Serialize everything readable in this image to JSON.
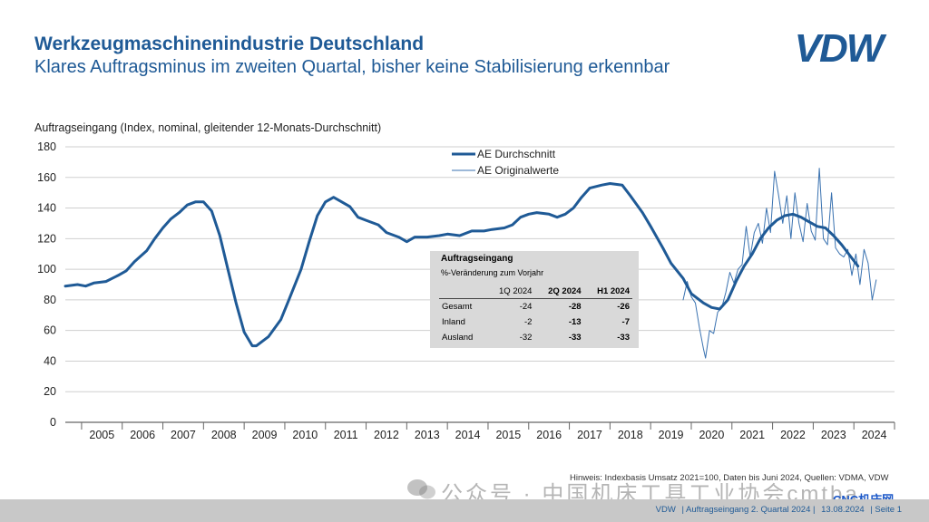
{
  "header": {
    "title": "Werkzeugmaschinenindustrie Deutschland",
    "subtitle": "Klares Auftragsminus im zweiten Quartal, bisher keine Stabilisierung erkennbar",
    "logo_text": "VDW"
  },
  "chart_data": {
    "type": "line",
    "ylabel": "Auftragseingang (Index, nominal, gleitender 12-Monats-Durchschnitt)",
    "ylim": [
      0,
      180
    ],
    "yticks": [
      0,
      20,
      40,
      60,
      80,
      100,
      120,
      140,
      160,
      180
    ],
    "xlim": [
      2004.6,
      2025.0
    ],
    "categories": [
      "2005",
      "2006",
      "2007",
      "2008",
      "2009",
      "2010",
      "2011",
      "2012",
      "2013",
      "2014",
      "2015",
      "2016",
      "2017",
      "2018",
      "2019",
      "2020",
      "2021",
      "2022",
      "2023",
      "2024"
    ],
    "grid": true,
    "legend_position": "top-center",
    "series": [
      {
        "name": "AE Durchschnitt",
        "color": "#1f5a96",
        "width": 3,
        "points": [
          [
            2004.6,
            89
          ],
          [
            2004.9,
            90
          ],
          [
            2005.1,
            89
          ],
          [
            2005.3,
            91
          ],
          [
            2005.6,
            92
          ],
          [
            2005.9,
            96
          ],
          [
            2006.1,
            99
          ],
          [
            2006.3,
            105
          ],
          [
            2006.6,
            112
          ],
          [
            2006.8,
            120
          ],
          [
            2007.0,
            127
          ],
          [
            2007.2,
            133
          ],
          [
            2007.4,
            137
          ],
          [
            2007.6,
            142
          ],
          [
            2007.8,
            144
          ],
          [
            2008.0,
            144
          ],
          [
            2008.2,
            138
          ],
          [
            2008.4,
            122
          ],
          [
            2008.6,
            100
          ],
          [
            2008.8,
            78
          ],
          [
            2009.0,
            59
          ],
          [
            2009.2,
            50
          ],
          [
            2009.3,
            50
          ],
          [
            2009.6,
            56
          ],
          [
            2009.9,
            67
          ],
          [
            2010.1,
            80
          ],
          [
            2010.4,
            100
          ],
          [
            2010.6,
            118
          ],
          [
            2010.8,
            135
          ],
          [
            2011.0,
            144
          ],
          [
            2011.2,
            147
          ],
          [
            2011.4,
            144
          ],
          [
            2011.6,
            141
          ],
          [
            2011.8,
            134
          ],
          [
            2012.0,
            132
          ],
          [
            2012.3,
            129
          ],
          [
            2012.5,
            124
          ],
          [
            2012.8,
            121
          ],
          [
            2013.0,
            118
          ],
          [
            2013.2,
            121
          ],
          [
            2013.5,
            121
          ],
          [
            2013.8,
            122
          ],
          [
            2014.0,
            123
          ],
          [
            2014.3,
            122
          ],
          [
            2014.6,
            125
          ],
          [
            2014.9,
            125
          ],
          [
            2015.1,
            126
          ],
          [
            2015.4,
            127
          ],
          [
            2015.6,
            129
          ],
          [
            2015.8,
            134
          ],
          [
            2016.0,
            136
          ],
          [
            2016.2,
            137
          ],
          [
            2016.5,
            136
          ],
          [
            2016.7,
            134
          ],
          [
            2016.9,
            136
          ],
          [
            2017.1,
            140
          ],
          [
            2017.3,
            147
          ],
          [
            2017.5,
            153
          ],
          [
            2017.8,
            155
          ],
          [
            2018.0,
            156
          ],
          [
            2018.3,
            155
          ],
          [
            2018.5,
            148
          ],
          [
            2018.8,
            137
          ],
          [
            2019.0,
            128
          ],
          [
            2019.3,
            114
          ],
          [
            2019.5,
            104
          ],
          [
            2019.8,
            94
          ],
          [
            2020.0,
            84
          ],
          [
            2020.3,
            78
          ],
          [
            2020.5,
            75
          ],
          [
            2020.7,
            74
          ],
          [
            2020.9,
            80
          ],
          [
            2021.1,
            92
          ],
          [
            2021.3,
            102
          ],
          [
            2021.5,
            110
          ],
          [
            2021.7,
            120
          ],
          [
            2021.9,
            127
          ],
          [
            2022.1,
            132
          ],
          [
            2022.3,
            135
          ],
          [
            2022.5,
            136
          ],
          [
            2022.7,
            134
          ],
          [
            2022.9,
            131
          ],
          [
            2023.1,
            128
          ],
          [
            2023.3,
            127
          ],
          [
            2023.5,
            122
          ],
          [
            2023.7,
            116
          ],
          [
            2023.9,
            109
          ],
          [
            2024.1,
            102
          ]
        ]
      },
      {
        "name": "AE Originalwerte",
        "color": "#3a72b0",
        "width": 1,
        "points": [
          [
            2019.8,
            80
          ],
          [
            2019.9,
            92
          ],
          [
            2020.0,
            82
          ],
          [
            2020.1,
            78
          ],
          [
            2020.2,
            62
          ],
          [
            2020.3,
            48
          ],
          [
            2020.35,
            42
          ],
          [
            2020.45,
            60
          ],
          [
            2020.55,
            58
          ],
          [
            2020.65,
            72
          ],
          [
            2020.75,
            75
          ],
          [
            2020.85,
            85
          ],
          [
            2020.95,
            98
          ],
          [
            2021.05,
            91
          ],
          [
            2021.15,
            100
          ],
          [
            2021.25,
            103
          ],
          [
            2021.35,
            128
          ],
          [
            2021.45,
            108
          ],
          [
            2021.55,
            124
          ],
          [
            2021.65,
            130
          ],
          [
            2021.75,
            117
          ],
          [
            2021.85,
            140
          ],
          [
            2021.95,
            124
          ],
          [
            2022.05,
            164
          ],
          [
            2022.15,
            148
          ],
          [
            2022.25,
            130
          ],
          [
            2022.35,
            148
          ],
          [
            2022.45,
            120
          ],
          [
            2022.55,
            150
          ],
          [
            2022.65,
            130
          ],
          [
            2022.75,
            118
          ],
          [
            2022.85,
            143
          ],
          [
            2022.95,
            125
          ],
          [
            2023.05,
            119
          ],
          [
            2023.15,
            166
          ],
          [
            2023.25,
            120
          ],
          [
            2023.35,
            116
          ],
          [
            2023.45,
            150
          ],
          [
            2023.55,
            114
          ],
          [
            2023.65,
            110
          ],
          [
            2023.75,
            108
          ],
          [
            2023.85,
            113
          ],
          [
            2023.95,
            96
          ],
          [
            2024.05,
            110
          ],
          [
            2024.15,
            90
          ],
          [
            2024.25,
            113
          ],
          [
            2024.35,
            104
          ],
          [
            2024.45,
            80
          ],
          [
            2024.55,
            93
          ]
        ]
      }
    ]
  },
  "table": {
    "title": "Auftragseingang",
    "subtitle": "%-Veränderung zum Vorjahr",
    "columns": [
      "1Q 2024",
      "2Q 2024",
      "H1 2024"
    ],
    "rows": [
      {
        "label": "Gesamt",
        "values": [
          "-24",
          "-28",
          "-26"
        ]
      },
      {
        "label": "Inland",
        "values": [
          "-2",
          "-13",
          "-7"
        ]
      },
      {
        "label": "Ausland",
        "values": [
          "-32",
          "-33",
          "-33"
        ]
      }
    ]
  },
  "note": "Hinweis: Indexbasis Umsatz 2021=100, Daten bis Juni 2024, Quellen: VDMA, VDW",
  "watermark": "公众号 · 中国机床工具工业协会cmtba",
  "cnc_label": "CNC机床网",
  "footer": {
    "org": "VDW",
    "report": "| Auftragseingang 2. Quartal 2024 |",
    "date": "13.08.2024",
    "page": "| Seite 1"
  }
}
